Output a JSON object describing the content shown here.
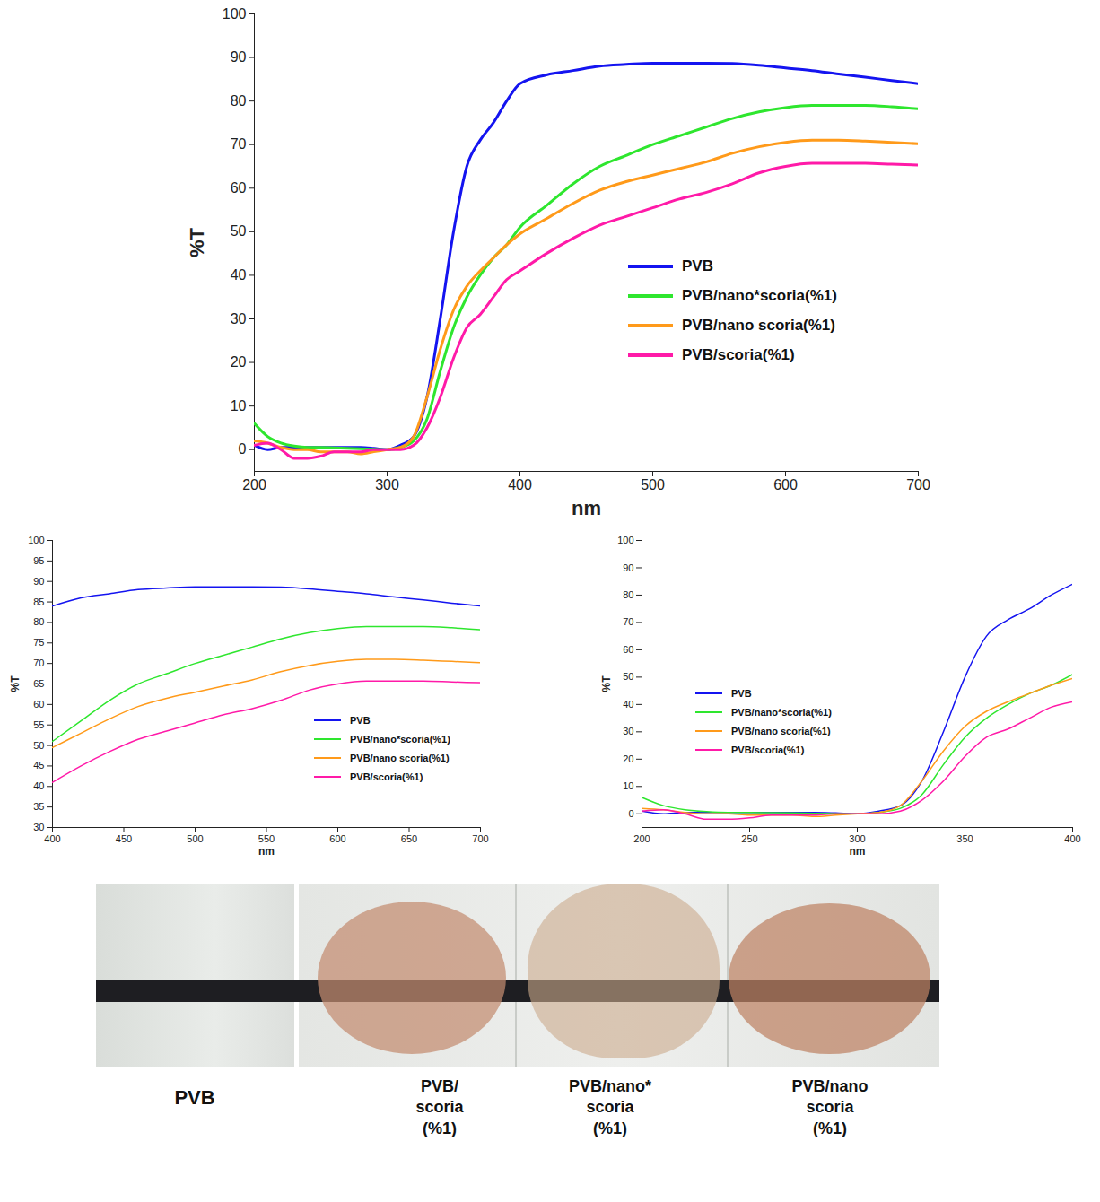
{
  "chart_data": [
    {
      "type": "line",
      "x_label": "nm",
      "y_label": "%T",
      "x": [
        200,
        210,
        220,
        230,
        240,
        250,
        260,
        270,
        280,
        290,
        300,
        310,
        320,
        330,
        340,
        350,
        360,
        370,
        380,
        390,
        400,
        420,
        440,
        460,
        480,
        500,
        520,
        540,
        560,
        580,
        600,
        620,
        640,
        660,
        680,
        700
      ],
      "xlim": [
        200,
        700
      ],
      "xticks": [
        200,
        300,
        400,
        500,
        600,
        700
      ],
      "ylim": [
        -5,
        100
      ],
      "yticks": [
        0,
        10,
        20,
        30,
        40,
        50,
        60,
        70,
        80,
        90,
        100
      ],
      "grid": false,
      "legend": "right",
      "series": [
        {
          "name": "PVB",
          "color": "#1414f0",
          "values": [
            1,
            0,
            0.5,
            0.5,
            0.5,
            0.5,
            0.5,
            0.5,
            0.5,
            0.3,
            0,
            1,
            3,
            12,
            30,
            50,
            65,
            71,
            75,
            80,
            84,
            86,
            87,
            88,
            88.4,
            88.7,
            88.7,
            88.7,
            88.6,
            88.2,
            87.6,
            87,
            86.2,
            85.5,
            84.7,
            84
          ]
        },
        {
          "name": "PVB/nano*scoria(%1)",
          "color": "#2ee62e",
          "values": [
            6,
            3,
            1.5,
            0.8,
            0.5,
            0.5,
            0.4,
            0.3,
            0.2,
            0.1,
            0,
            0.5,
            2,
            7,
            18,
            28,
            35,
            40,
            44,
            47,
            51,
            56,
            61,
            65,
            67.5,
            70,
            72,
            74,
            76,
            77.5,
            78.5,
            79,
            79,
            79,
            78.7,
            78.2
          ]
        },
        {
          "name": "PVB/nano scoria(%1)",
          "color": "#ff9a1a",
          "values": [
            2,
            1.5,
            0.5,
            0,
            0,
            -0.5,
            -0.5,
            -0.5,
            -1,
            -0.5,
            0,
            0.5,
            3,
            12,
            23,
            32,
            37.5,
            41,
            44,
            47,
            49.5,
            53,
            56.5,
            59.5,
            61.5,
            63,
            64.5,
            66,
            68,
            69.5,
            70.5,
            71,
            71,
            70.8,
            70.5,
            70.2
          ]
        },
        {
          "name": "PVB/scoria(%1)",
          "color": "#ff1aa8",
          "values": [
            1,
            1.5,
            0,
            -2,
            -2,
            -1.5,
            -0.5,
            -0.5,
            -0.5,
            0,
            0,
            0,
            1,
            5,
            12,
            21,
            28,
            31,
            35,
            39,
            41,
            45,
            48.5,
            51.5,
            53.5,
            55.5,
            57.5,
            59,
            61,
            63.5,
            65,
            65.7,
            65.7,
            65.7,
            65.5,
            65.3
          ]
        }
      ]
    },
    {
      "type": "line",
      "x_label": "nm",
      "y_label": "%T",
      "x": [
        400,
        420,
        440,
        460,
        480,
        500,
        520,
        540,
        560,
        580,
        600,
        620,
        640,
        660,
        680,
        700
      ],
      "xlim": [
        400,
        700
      ],
      "xticks": [
        400,
        450,
        500,
        550,
        600,
        650,
        700
      ],
      "ylim": [
        30,
        100
      ],
      "yticks": [
        30,
        35,
        40,
        45,
        50,
        55,
        60,
        65,
        70,
        75,
        80,
        85,
        90,
        95,
        100
      ],
      "grid": false,
      "legend": "right",
      "series": [
        {
          "name": "PVB",
          "color": "#1414f0",
          "values": [
            84,
            86,
            87,
            88,
            88.4,
            88.7,
            88.7,
            88.7,
            88.6,
            88.2,
            87.6,
            87,
            86.2,
            85.5,
            84.7,
            84
          ]
        },
        {
          "name": "PVB/nano*scoria(%1)",
          "color": "#2ee62e",
          "values": [
            51,
            56,
            61,
            65,
            67.5,
            70,
            72,
            74,
            76,
            77.5,
            78.5,
            79,
            79,
            79,
            78.7,
            78.2
          ]
        },
        {
          "name": "PVB/nano scoria(%1)",
          "color": "#ff9a1a",
          "values": [
            49.5,
            53,
            56.5,
            59.5,
            61.5,
            63,
            64.5,
            66,
            68,
            69.5,
            70.5,
            71,
            71,
            70.8,
            70.5,
            70.2
          ]
        },
        {
          "name": "PVB/scoria(%1)",
          "color": "#ff1aa8",
          "values": [
            41,
            45,
            48.5,
            51.5,
            53.5,
            55.5,
            57.5,
            59,
            61,
            63.5,
            65,
            65.7,
            65.7,
            65.7,
            65.5,
            65.3
          ]
        }
      ]
    },
    {
      "type": "line",
      "x_label": "nm",
      "y_label": "%T",
      "x": [
        200,
        210,
        220,
        230,
        240,
        250,
        260,
        270,
        280,
        290,
        300,
        310,
        320,
        330,
        340,
        350,
        360,
        370,
        380,
        390,
        400
      ],
      "xlim": [
        200,
        400
      ],
      "xticks": [
        200,
        250,
        300,
        350,
        400
      ],
      "ylim": [
        -5,
        100
      ],
      "yticks": [
        0,
        10,
        20,
        30,
        40,
        50,
        60,
        70,
        80,
        90,
        100
      ],
      "grid": false,
      "legend": "left",
      "series": [
        {
          "name": "PVB",
          "color": "#1414f0",
          "values": [
            1,
            0,
            0.5,
            0.5,
            0.5,
            0.5,
            0.5,
            0.5,
            0.5,
            0.3,
            0,
            1,
            3,
            12,
            30,
            50,
            65,
            71,
            75,
            80,
            84
          ]
        },
        {
          "name": "PVB/nano*scoria(%1)",
          "color": "#2ee62e",
          "values": [
            6,
            3,
            1.5,
            0.8,
            0.5,
            0.5,
            0.4,
            0.3,
            0.2,
            0.1,
            0,
            0.5,
            2,
            7,
            18,
            28,
            35,
            40,
            44,
            47,
            51
          ]
        },
        {
          "name": "PVB/nano scoria(%1)",
          "color": "#ff9a1a",
          "values": [
            2,
            1.5,
            0.5,
            0,
            0,
            -0.5,
            -0.5,
            -0.5,
            -1,
            -0.5,
            0,
            0.5,
            3,
            12,
            23,
            32,
            37.5,
            41,
            44,
            47,
            49.5
          ]
        },
        {
          "name": "PVB/scoria(%1)",
          "color": "#ff1aa8",
          "values": [
            1,
            1.5,
            0,
            -2,
            -2,
            -1.5,
            -0.5,
            -0.5,
            -0.5,
            0,
            0,
            0,
            1,
            5,
            12,
            21,
            28,
            31,
            35,
            39,
            41
          ]
        }
      ]
    }
  ],
  "photo": {
    "labels": [
      [
        "PVB"
      ],
      [
        "PVB/",
        "scoria",
        "(%1)"
      ],
      [
        "PVB/nano*",
        "scoria",
        "(%1)"
      ],
      [
        "PVB/nano",
        "scoria",
        "(%1)"
      ]
    ]
  }
}
